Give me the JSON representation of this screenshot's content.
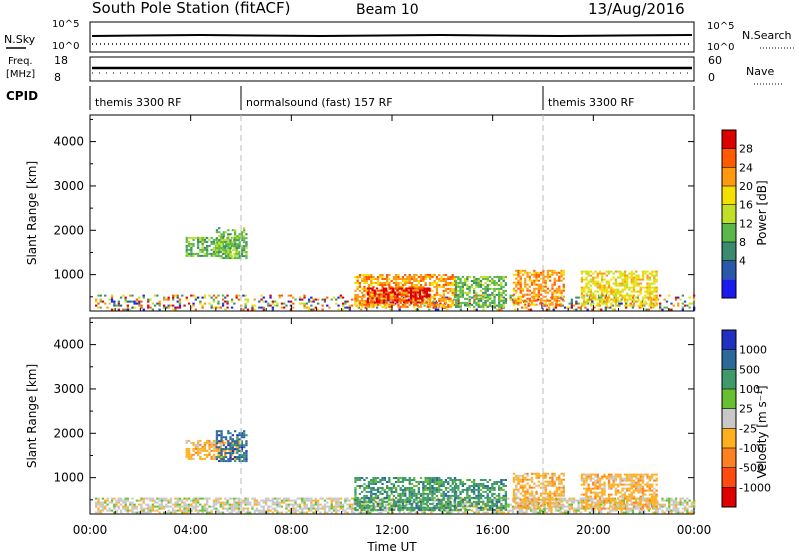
{
  "header": {
    "title": "South Pole Station (fitACF)",
    "beam": "Beam 10",
    "date": "13/Aug/2016"
  },
  "top_panels": {
    "nsky_label": "N.Sky",
    "nsky_ticks": [
      "10^5",
      "10^0"
    ],
    "nsearch_label": "N.Search",
    "nsearch_ticks": [
      "10^5",
      "10^0"
    ],
    "freq_label_top": "Freq.",
    "freq_label_unit": "[MHz]",
    "freq_ticks": [
      "18",
      "8"
    ],
    "nave_label": "Nave",
    "nave_ticks": [
      "60",
      "0"
    ],
    "cpid_label": "CPID",
    "cpid_segments": [
      {
        "label": "themis 3300 RF",
        "start_hour": 0
      },
      {
        "label": "normalsound (fast) 157 RF",
        "start_hour": 6
      },
      {
        "label": "themis 3300 RF",
        "start_hour": 18
      }
    ]
  },
  "colorbars": {
    "power": {
      "label": "Power [dB]",
      "ticks": [
        "28",
        "24",
        "20",
        "16",
        "12",
        "8",
        "4"
      ],
      "colors": [
        "#dd0000",
        "#ff5a00",
        "#ff9a10",
        "#f4e000",
        "#bfe026",
        "#5ab84a",
        "#3a8a6e",
        "#2a58a8",
        "#1a1aee"
      ]
    },
    "velocity": {
      "label": "Velocity [m s⁻¹]",
      "ticks": [
        "1000",
        "500",
        "100",
        "25",
        "-25",
        "-100",
        "-500",
        "-1000"
      ],
      "colors": [
        "#2030c0",
        "#2a6a9a",
        "#3f9a6a",
        "#66c032",
        "#c8c8c8",
        "#ffb020",
        "#ff8020",
        "#ff4a10",
        "#e00000"
      ]
    }
  },
  "chart_data": [
    {
      "type": "heatmap",
      "title": "",
      "ylabel": "Slant Range [km]",
      "xlabel": "",
      "xlim_hours": [
        0,
        24
      ],
      "ylim": [
        180,
        4600
      ],
      "yticks": [
        1000,
        2000,
        3000,
        4000
      ],
      "vertical_markers_hours": [
        6,
        18
      ],
      "colorbar": "power",
      "regions": [
        {
          "t0": 3.8,
          "t1": 5.9,
          "r0": 1400,
          "r1": 1850,
          "level": "12"
        },
        {
          "t0": 5.0,
          "t1": 6.2,
          "r0": 1350,
          "r1": 2050,
          "level": "12"
        },
        {
          "t0": 0.2,
          "t1": 24.0,
          "r0": 190,
          "r1": 520,
          "level": "mixed"
        },
        {
          "t0": 10.5,
          "t1": 14.5,
          "r0": 250,
          "r1": 1000,
          "level": "20"
        },
        {
          "t0": 11.0,
          "t1": 13.5,
          "r0": 350,
          "r1": 700,
          "level": "28"
        },
        {
          "t0": 14.5,
          "t1": 16.5,
          "r0": 250,
          "r1": 950,
          "level": "12"
        },
        {
          "t0": 16.8,
          "t1": 18.8,
          "r0": 300,
          "r1": 1100,
          "level": "20"
        },
        {
          "t0": 19.5,
          "t1": 22.5,
          "r0": 280,
          "r1": 1050,
          "level": "16"
        }
      ]
    },
    {
      "type": "heatmap",
      "title": "",
      "ylabel": "Slant Range [km]",
      "xlabel": "Time UT",
      "xlim_hours": [
        0,
        24
      ],
      "xticks": [
        "00:00",
        "04:00",
        "08:00",
        "12:00",
        "16:00",
        "20:00",
        "00:00"
      ],
      "ylim": [
        180,
        4600
      ],
      "yticks": [
        1000,
        2000,
        3000,
        4000
      ],
      "vertical_markers_hours": [
        6,
        18
      ],
      "colorbar": "velocity",
      "regions": [
        {
          "t0": 3.8,
          "t1": 5.9,
          "r0": 1400,
          "r1": 1850,
          "level": "-100"
        },
        {
          "t0": 5.0,
          "t1": 6.2,
          "r0": 1350,
          "r1": 2050,
          "level": "500"
        },
        {
          "t0": 0.2,
          "t1": 24.0,
          "r0": 190,
          "r1": 520,
          "level": "25"
        },
        {
          "t0": 10.5,
          "t1": 14.5,
          "r0": 250,
          "r1": 1000,
          "level": "100"
        },
        {
          "t0": 14.5,
          "t1": 16.5,
          "r0": 250,
          "r1": 950,
          "level": "100"
        },
        {
          "t0": 16.8,
          "t1": 18.8,
          "r0": 300,
          "r1": 1100,
          "level": "-100"
        },
        {
          "t0": 19.5,
          "t1": 22.5,
          "r0": 280,
          "r1": 1050,
          "level": "-100"
        }
      ]
    }
  ]
}
